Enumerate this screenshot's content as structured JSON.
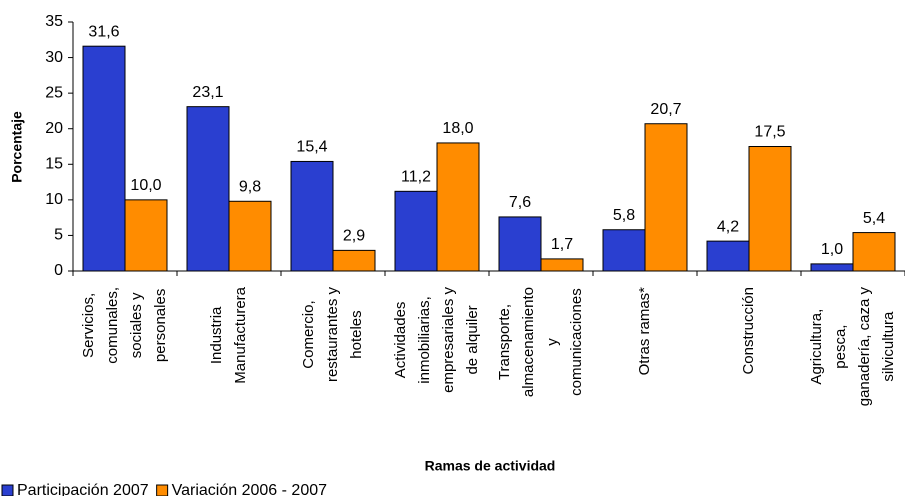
{
  "chart_data": {
    "type": "bar",
    "x_label": "Ramas de actividad",
    "y_label": "Porcentaje",
    "categories": [
      "Servicios,\ncomunales,\nsociales y\npersonales",
      "Industria\nManufacturera",
      "Comercio,\nrestaurantes y\nhoteles",
      "Actividades\ninmobiliarias,\nempresariales y\nde alquiler",
      "Transporte,\nalmacenamiento\ny\ncomunicaciones",
      "Otras ramas*",
      "Construcción",
      "Agricultura,\npesca,\nganadería, caza y\nsilvicultura"
    ],
    "series": [
      {
        "name": "Participación 2007",
        "color": "#2a3fd0",
        "values": [
          31.6,
          23.1,
          15.4,
          11.2,
          7.6,
          5.8,
          4.2,
          1.0
        ],
        "value_labels": [
          "31,6",
          "23,1",
          "15,4",
          "11,2",
          "7,6",
          "5,8",
          "4,2",
          "1,0"
        ]
      },
      {
        "name": "Variación 2006 - 2007",
        "color": "#ff8c00",
        "values": [
          10.0,
          9.8,
          2.9,
          18.0,
          1.7,
          20.7,
          17.5,
          5.4
        ],
        "value_labels": [
          "10,0",
          "9,8",
          "2,9",
          "18,0",
          "1,7",
          "20,7",
          "17,5",
          "5,4"
        ]
      }
    ],
    "ylim": [
      0,
      35
    ],
    "yticks": [
      0,
      5,
      10,
      15,
      20,
      25,
      30,
      35
    ],
    "grid": false,
    "legend": "bottom-left"
  }
}
